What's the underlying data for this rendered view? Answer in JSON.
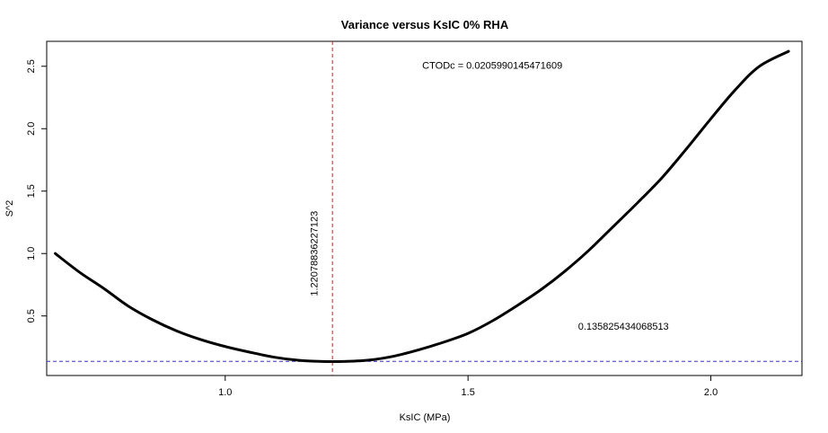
{
  "chart_data": {
    "type": "line",
    "title": "Variance versus KsIC 0% RHA",
    "xlabel": "KsIC (MPa)",
    "ylabel": "S^2",
    "xlim": [
      0.6324,
      2.1876
    ],
    "ylim": [
      0.0228,
      2.7
    ],
    "x_ticks": [
      1.0,
      1.5,
      2.0
    ],
    "x_tick_labels": [
      "1.0",
      "1.5",
      "2.0"
    ],
    "y_ticks": [
      0.5,
      1.0,
      1.5,
      2.0,
      2.5
    ],
    "y_tick_labels": [
      "0.5",
      "1.0",
      "1.5",
      "2.0",
      "2.5"
    ],
    "grid": false,
    "series": [
      {
        "color": "#000000",
        "x": [
          0.65,
          0.7,
          0.75,
          0.8,
          0.85,
          0.9,
          0.95,
          1.0,
          1.05,
          1.1,
          1.15,
          1.2,
          1.25,
          1.3,
          1.35,
          1.4,
          1.45,
          1.5,
          1.55,
          1.6,
          1.65,
          1.7,
          1.75,
          1.8,
          1.85,
          1.9,
          1.95,
          2.0,
          2.05,
          2.1,
          2.16
        ],
        "values": [
          1.0,
          0.85,
          0.72,
          0.58,
          0.47,
          0.38,
          0.31,
          0.255,
          0.21,
          0.17,
          0.145,
          0.135,
          0.136,
          0.148,
          0.18,
          0.23,
          0.29,
          0.36,
          0.46,
          0.58,
          0.71,
          0.86,
          1.03,
          1.22,
          1.41,
          1.61,
          1.84,
          2.08,
          2.31,
          2.5,
          2.62
        ]
      }
    ],
    "reference_lines": [
      {
        "orientation": "vertical",
        "value": 1.22078836227123,
        "color": "#cc2222",
        "style": "dashed"
      },
      {
        "orientation": "horizontal",
        "value": 0.135825434068513,
        "color": "#3333cc",
        "style": "dashed"
      }
    ],
    "annotations": [
      {
        "text": "CTODc = 0.0205990145471609",
        "x": 1.55,
        "y": 2.48
      },
      {
        "text": "1.22078836227123",
        "x": 1.19,
        "y": 1.0,
        "rotation": -90
      },
      {
        "text": "0.135825434068513",
        "x": 1.82,
        "y": 0.39
      }
    ]
  }
}
